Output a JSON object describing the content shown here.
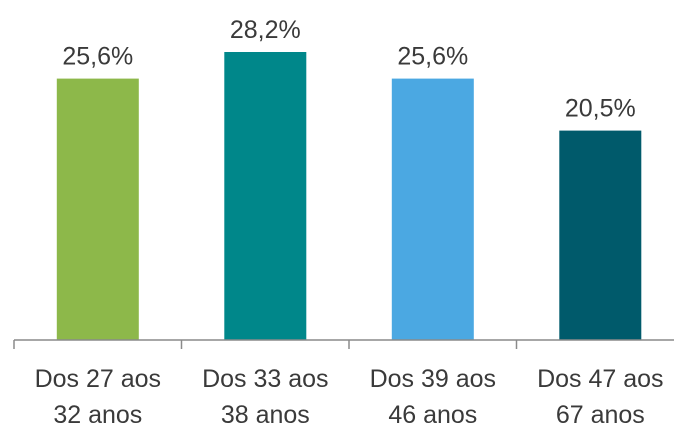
{
  "chart_data": {
    "type": "bar",
    "title": "",
    "xlabel": "",
    "ylabel": "",
    "categories": [
      [
        "Dos 27 aos",
        "32 anos"
      ],
      [
        "Dos 33 aos",
        "38 anos"
      ],
      [
        "Dos 39 aos",
        "46 anos"
      ],
      [
        "Dos 47 aos",
        "67 anos"
      ]
    ],
    "values": [
      25.6,
      28.2,
      25.6,
      20.5
    ],
    "value_labels": [
      "25,6%",
      "28,2%",
      "25,6%",
      "20,5%"
    ],
    "colors": [
      "#8DB84A",
      "#00878A",
      "#4BA8E2",
      "#005A6B"
    ],
    "ylim": [
      0,
      28.2
    ],
    "grid": false,
    "legend": "none"
  }
}
